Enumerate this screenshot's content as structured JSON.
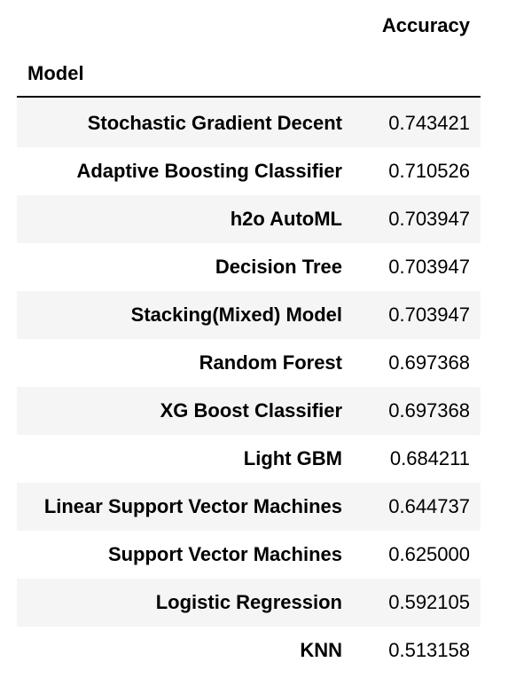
{
  "header": {
    "accuracy_label": "Accuracy",
    "model_label": "Model"
  },
  "rows": [
    {
      "model": "Stochastic Gradient Decent",
      "accuracy": "0.743421"
    },
    {
      "model": "Adaptive Boosting Classifier",
      "accuracy": "0.710526"
    },
    {
      "model": "h2o AutoML",
      "accuracy": "0.703947"
    },
    {
      "model": "Decision Tree",
      "accuracy": "0.703947"
    },
    {
      "model": "Stacking(Mixed) Model",
      "accuracy": "0.703947"
    },
    {
      "model": "Random Forest",
      "accuracy": "0.697368"
    },
    {
      "model": "XG Boost Classifier",
      "accuracy": "0.697368"
    },
    {
      "model": "Light GBM",
      "accuracy": "0.684211"
    },
    {
      "model": "Linear Support Vector Machines",
      "accuracy": "0.644737"
    },
    {
      "model": "Support Vector Machines",
      "accuracy": "0.625000"
    },
    {
      "model": "Logistic Regression",
      "accuracy": "0.592105"
    },
    {
      "model": "KNN",
      "accuracy": "0.513158"
    }
  ],
  "colors": {
    "stripe": "#f5f5f5",
    "text": "#000000",
    "rule": "#000000"
  }
}
